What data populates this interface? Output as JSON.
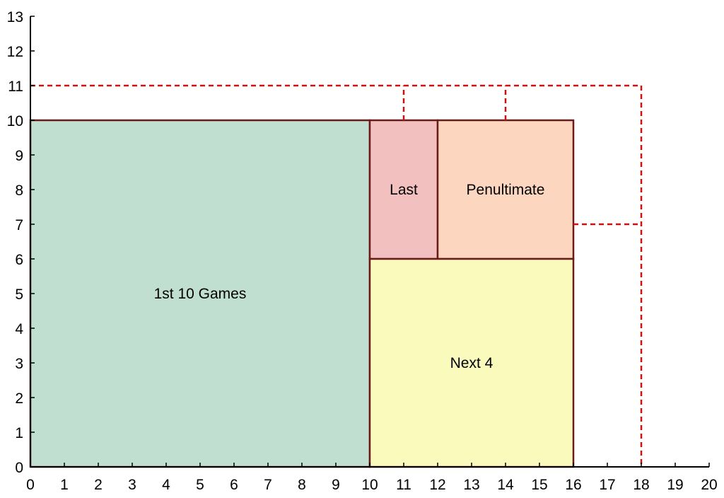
{
  "chart_data": {
    "type": "area-diagram",
    "xlim": [
      0,
      20
    ],
    "ylim": [
      0,
      13
    ],
    "x_ticks": [
      0,
      1,
      2,
      3,
      4,
      5,
      6,
      7,
      8,
      9,
      10,
      11,
      12,
      13,
      14,
      15,
      16,
      17,
      18,
      19,
      20
    ],
    "y_ticks": [
      0,
      1,
      2,
      3,
      4,
      5,
      6,
      7,
      8,
      9,
      10,
      11,
      12,
      13
    ],
    "x_tick_labels": [
      "0",
      "1",
      "2",
      "3",
      "4",
      "5",
      "6",
      "7",
      "8",
      "9",
      "10",
      "11",
      "12",
      "13",
      "14",
      "15",
      "16",
      "17",
      "18",
      "19",
      "20"
    ],
    "y_tick_labels": [
      "0",
      "1",
      "2",
      "3",
      "4",
      "5",
      "6",
      "7",
      "8",
      "9",
      "10",
      "11",
      "12",
      "13"
    ],
    "colors": {
      "axis": "#000000",
      "rect_border": "#6b1a1a",
      "dashed": "#cc1111"
    },
    "rectangles": [
      {
        "label": "1st 10 Games",
        "x0": 0,
        "y0": 0,
        "x1": 10,
        "y1": 10,
        "fill": "#c0dfd0"
      },
      {
        "label": "Last",
        "x0": 10,
        "y0": 6,
        "x1": 12,
        "y1": 10,
        "fill": "#f3c0c0"
      },
      {
        "label": "Penultimate",
        "x0": 12,
        "y0": 6,
        "x1": 16,
        "y1": 10,
        "fill": "#fdd6c0"
      },
      {
        "label": "Next 4",
        "x0": 10,
        "y0": 0,
        "x1": 16,
        "y1": 6,
        "fill": "#fafabd"
      }
    ],
    "dashed_segments": [
      {
        "x0": 0,
        "y0": 11,
        "x1": 18,
        "y1": 11
      },
      {
        "x0": 18,
        "y0": 11,
        "x1": 18,
        "y1": 0
      },
      {
        "x0": 11,
        "y0": 10,
        "x1": 11,
        "y1": 11
      },
      {
        "x0": 14,
        "y0": 10,
        "x1": 14,
        "y1": 11
      },
      {
        "x0": 16,
        "y0": 7,
        "x1": 18,
        "y1": 7
      }
    ]
  }
}
